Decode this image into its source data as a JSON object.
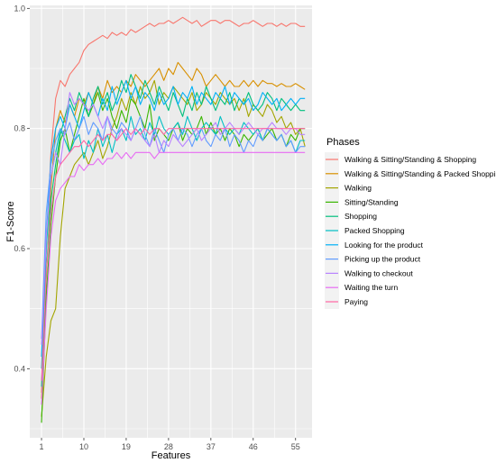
{
  "chart_data": {
    "type": "line",
    "title": "",
    "xlabel": "Features",
    "ylabel": "F1-Score",
    "xlim": [
      -1.5,
      58.5
    ],
    "ylim": [
      0.285,
      1.005
    ],
    "x_ticks": [
      1,
      10,
      19,
      28,
      37,
      46,
      55
    ],
    "y_ticks": [
      0.4,
      0.6,
      0.8,
      1.0
    ],
    "y_tick_labels": [
      "0.4",
      "0.6",
      "0.8",
      "1.0"
    ],
    "grid": true,
    "legend": {
      "title": "Phases",
      "position": "right"
    },
    "x": [
      1,
      2,
      3,
      4,
      5,
      6,
      7,
      8,
      9,
      10,
      11,
      12,
      13,
      14,
      15,
      16,
      17,
      18,
      19,
      20,
      21,
      22,
      23,
      24,
      25,
      26,
      27,
      28,
      29,
      30,
      31,
      32,
      33,
      34,
      35,
      36,
      37,
      38,
      39,
      40,
      41,
      42,
      43,
      44,
      45,
      46,
      47,
      48,
      49,
      50,
      51,
      52,
      53,
      54,
      55,
      56,
      57
    ],
    "series": [
      {
        "name": "Walking & Sitting/Standing & Shopping",
        "color": "#F8766D",
        "values": [
          0.36,
          0.6,
          0.76,
          0.85,
          0.88,
          0.87,
          0.89,
          0.9,
          0.91,
          0.93,
          0.94,
          0.945,
          0.95,
          0.955,
          0.95,
          0.96,
          0.955,
          0.96,
          0.955,
          0.965,
          0.96,
          0.965,
          0.97,
          0.975,
          0.97,
          0.975,
          0.975,
          0.98,
          0.975,
          0.98,
          0.985,
          0.98,
          0.975,
          0.98,
          0.97,
          0.975,
          0.98,
          0.98,
          0.975,
          0.98,
          0.98,
          0.975,
          0.97,
          0.975,
          0.975,
          0.98,
          0.975,
          0.97,
          0.975,
          0.975,
          0.97,
          0.975,
          0.97,
          0.975,
          0.975,
          0.97,
          0.97
        ]
      },
      {
        "name": "Walking & Sitting/Standing & Packed Shopping",
        "color": "#D89000",
        "values": [
          0.35,
          0.55,
          0.7,
          0.8,
          0.83,
          0.81,
          0.84,
          0.82,
          0.85,
          0.84,
          0.86,
          0.84,
          0.87,
          0.85,
          0.88,
          0.86,
          0.87,
          0.86,
          0.88,
          0.87,
          0.89,
          0.88,
          0.87,
          0.88,
          0.89,
          0.9,
          0.88,
          0.9,
          0.89,
          0.91,
          0.9,
          0.89,
          0.88,
          0.9,
          0.89,
          0.87,
          0.88,
          0.89,
          0.88,
          0.87,
          0.88,
          0.87,
          0.87,
          0.88,
          0.87,
          0.88,
          0.87,
          0.88,
          0.875,
          0.875,
          0.87,
          0.875,
          0.87,
          0.87,
          0.875,
          0.87,
          0.865
        ]
      },
      {
        "name": "Walking",
        "color": "#A3A500",
        "values": [
          0.32,
          0.42,
          0.48,
          0.5,
          0.62,
          0.7,
          0.72,
          0.74,
          0.75,
          0.76,
          0.74,
          0.76,
          0.78,
          0.75,
          0.77,
          0.8,
          0.82,
          0.85,
          0.83,
          0.86,
          0.84,
          0.87,
          0.85,
          0.86,
          0.88,
          0.84,
          0.86,
          0.85,
          0.87,
          0.86,
          0.85,
          0.84,
          0.86,
          0.83,
          0.84,
          0.86,
          0.85,
          0.84,
          0.86,
          0.85,
          0.84,
          0.85,
          0.83,
          0.85,
          0.82,
          0.84,
          0.83,
          0.82,
          0.84,
          0.83,
          0.81,
          0.82,
          0.8,
          0.81,
          0.79,
          0.8,
          0.77
        ]
      },
      {
        "name": "Sitting/Standing",
        "color": "#39B600",
        "values": [
          0.31,
          0.52,
          0.64,
          0.72,
          0.78,
          0.8,
          0.76,
          0.79,
          0.82,
          0.85,
          0.82,
          0.84,
          0.86,
          0.83,
          0.85,
          0.82,
          0.8,
          0.83,
          0.81,
          0.85,
          0.84,
          0.82,
          0.8,
          0.84,
          0.78,
          0.8,
          0.79,
          0.78,
          0.8,
          0.81,
          0.78,
          0.8,
          0.79,
          0.8,
          0.82,
          0.79,
          0.81,
          0.79,
          0.8,
          0.78,
          0.8,
          0.79,
          0.77,
          0.79,
          0.78,
          0.79,
          0.8,
          0.78,
          0.79,
          0.8,
          0.78,
          0.79,
          0.77,
          0.79,
          0.78,
          0.8,
          0.8
        ]
      },
      {
        "name": "Shopping",
        "color": "#00BF7D",
        "values": [
          0.37,
          0.56,
          0.68,
          0.74,
          0.79,
          0.82,
          0.85,
          0.83,
          0.86,
          0.84,
          0.82,
          0.85,
          0.87,
          0.84,
          0.86,
          0.83,
          0.85,
          0.88,
          0.86,
          0.89,
          0.87,
          0.85,
          0.88,
          0.86,
          0.84,
          0.87,
          0.85,
          0.83,
          0.86,
          0.84,
          0.82,
          0.85,
          0.83,
          0.86,
          0.84,
          0.87,
          0.85,
          0.83,
          0.85,
          0.84,
          0.86,
          0.83,
          0.85,
          0.84,
          0.86,
          0.84,
          0.83,
          0.84,
          0.86,
          0.85,
          0.83,
          0.85,
          0.84,
          0.83,
          0.84,
          0.83,
          0.83
        ]
      },
      {
        "name": "Packed Shopping",
        "color": "#00BFC4",
        "values": [
          0.4,
          0.6,
          0.72,
          0.76,
          0.8,
          0.78,
          0.76,
          0.78,
          0.79,
          0.75,
          0.78,
          0.76,
          0.8,
          0.77,
          0.79,
          0.76,
          0.79,
          0.8,
          0.78,
          0.82,
          0.79,
          0.8,
          0.78,
          0.81,
          0.79,
          0.82,
          0.8,
          0.79,
          0.8,
          0.81,
          0.79,
          0.82,
          0.8,
          0.78,
          0.8,
          0.81,
          0.8,
          0.79,
          0.82,
          0.8,
          0.79,
          0.8,
          0.79,
          0.81,
          0.8,
          0.79,
          0.8,
          0.78,
          0.8,
          0.79,
          0.78,
          0.79,
          0.77,
          0.78,
          0.76,
          0.78,
          0.78
        ]
      },
      {
        "name": "Looking for the product",
        "color": "#00B0F6",
        "values": [
          0.42,
          0.62,
          0.75,
          0.8,
          0.82,
          0.8,
          0.84,
          0.82,
          0.8,
          0.83,
          0.86,
          0.84,
          0.82,
          0.85,
          0.83,
          0.87,
          0.84,
          0.86,
          0.88,
          0.85,
          0.87,
          0.84,
          0.86,
          0.85,
          0.83,
          0.86,
          0.84,
          0.85,
          0.87,
          0.84,
          0.86,
          0.85,
          0.87,
          0.84,
          0.86,
          0.85,
          0.84,
          0.86,
          0.85,
          0.87,
          0.84,
          0.86,
          0.85,
          0.84,
          0.85,
          0.83,
          0.84,
          0.86,
          0.85,
          0.84,
          0.85,
          0.83,
          0.84,
          0.85,
          0.84,
          0.85,
          0.85
        ]
      },
      {
        "name": "Picking up the product",
        "color": "#619CFF",
        "values": [
          0.45,
          0.66,
          0.74,
          0.78,
          0.8,
          0.79,
          0.81,
          0.78,
          0.8,
          0.82,
          0.79,
          0.81,
          0.8,
          0.78,
          0.82,
          0.8,
          0.79,
          0.81,
          0.8,
          0.78,
          0.8,
          0.82,
          0.79,
          0.77,
          0.8,
          0.78,
          0.76,
          0.79,
          0.8,
          0.78,
          0.8,
          0.79,
          0.77,
          0.79,
          0.8,
          0.78,
          0.77,
          0.79,
          0.78,
          0.8,
          0.77,
          0.79,
          0.78,
          0.76,
          0.78,
          0.77,
          0.79,
          0.78,
          0.8,
          0.79,
          0.78,
          0.79,
          0.77,
          0.78,
          0.76,
          0.77,
          0.77
        ]
      },
      {
        "name": "Walking to checkout",
        "color": "#B983FF",
        "values": [
          0.44,
          0.62,
          0.72,
          0.76,
          0.74,
          0.8,
          0.86,
          0.84,
          0.85,
          0.84,
          0.83,
          0.84,
          0.82,
          0.8,
          0.82,
          0.79,
          0.78,
          0.8,
          0.79,
          0.78,
          0.8,
          0.79,
          0.78,
          0.77,
          0.79,
          0.76,
          0.78,
          0.77,
          0.79,
          0.78,
          0.77,
          0.78,
          0.79,
          0.8,
          0.78,
          0.79,
          0.8,
          0.81,
          0.79,
          0.8,
          0.81,
          0.8,
          0.79,
          0.8,
          0.81,
          0.8,
          0.79,
          0.8,
          0.8,
          0.81,
          0.8,
          0.8,
          0.79,
          0.8,
          0.8,
          0.79,
          0.79
        ]
      },
      {
        "name": "Waiting the turn",
        "color": "#E76BF3",
        "values": [
          0.34,
          0.5,
          0.62,
          0.68,
          0.7,
          0.71,
          0.72,
          0.72,
          0.74,
          0.73,
          0.74,
          0.74,
          0.75,
          0.74,
          0.75,
          0.75,
          0.76,
          0.75,
          0.76,
          0.75,
          0.76,
          0.76,
          0.76,
          0.76,
          0.75,
          0.76,
          0.76,
          0.76,
          0.76,
          0.76,
          0.76,
          0.76,
          0.76,
          0.76,
          0.76,
          0.76,
          0.76,
          0.76,
          0.76,
          0.76,
          0.76,
          0.76,
          0.76,
          0.76,
          0.76,
          0.76,
          0.76,
          0.76,
          0.76,
          0.76,
          0.76,
          0.76,
          0.76,
          0.76,
          0.76,
          0.76,
          0.76
        ]
      },
      {
        "name": "Paying",
        "color": "#FF67A4",
        "values": [
          0.38,
          0.56,
          0.66,
          0.72,
          0.74,
          0.75,
          0.76,
          0.77,
          0.77,
          0.78,
          0.77,
          0.78,
          0.79,
          0.78,
          0.79,
          0.79,
          0.78,
          0.79,
          0.8,
          0.79,
          0.8,
          0.79,
          0.8,
          0.79,
          0.8,
          0.8,
          0.79,
          0.8,
          0.8,
          0.8,
          0.8,
          0.8,
          0.8,
          0.8,
          0.8,
          0.8,
          0.8,
          0.8,
          0.8,
          0.8,
          0.8,
          0.8,
          0.8,
          0.8,
          0.8,
          0.8,
          0.8,
          0.8,
          0.8,
          0.8,
          0.8,
          0.8,
          0.8,
          0.8,
          0.8,
          0.8,
          0.8
        ]
      }
    ]
  }
}
